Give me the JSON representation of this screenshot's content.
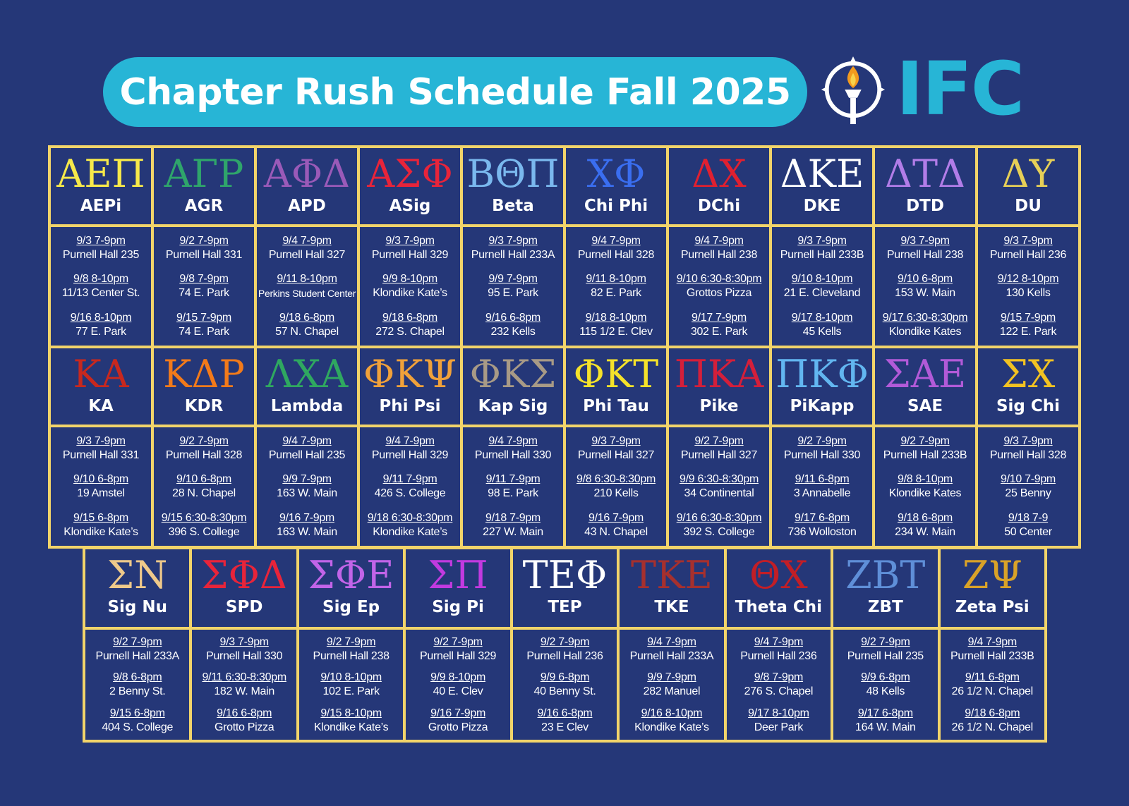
{
  "title": "Chapter Rush Schedule Fall 2025",
  "logo_text": "IFC",
  "colors": {
    "background": "#253778",
    "accent": "#27b5d6",
    "border": "#f2d46a"
  },
  "icons": {
    "logo": "torch-icon"
  },
  "top_chapters": [
    {
      "greek": "ΑΕΠ",
      "name": "AEPi",
      "color": "#f7e94a",
      "events": [
        {
          "date": "9/3 7-9pm",
          "location": "Purnell Hall 235"
        },
        {
          "date": "9/8 8-10pm",
          "location": "11/13 Center St."
        },
        {
          "date": "9/16 8-10pm",
          "location": "77 E. Park"
        }
      ]
    },
    {
      "greek": "ΑΓΡ",
      "name": "AGR",
      "color": "#2fa56b",
      "events": [
        {
          "date": "9/2 7-9pm",
          "location": "Purnell Hall 331"
        },
        {
          "date": "9/8 7-9pm",
          "location": "74 E. Park"
        },
        {
          "date": "9/15 7-9pm",
          "location": "74 E. Park"
        }
      ]
    },
    {
      "greek": "ΑΦΔ",
      "name": "APD",
      "color": "#9a5ab8",
      "events": [
        {
          "date": "9/4 7-9pm",
          "location": "Purnell Hall 327"
        },
        {
          "date": "9/11 8-10pm",
          "location": "Perkins Student Center"
        },
        {
          "date": "9/18 6-8pm",
          "location": "57 N. Chapel"
        }
      ]
    },
    {
      "greek": "ΑΣΦ",
      "name": "ASig",
      "color": "#e8243a",
      "events": [
        {
          "date": "9/3 7-9pm",
          "location": "Purnell Hall 329"
        },
        {
          "date": "9/9 8-10pm",
          "location": "Klondike Kate’s"
        },
        {
          "date": "9/18 6-8pm",
          "location": "272 S. Chapel"
        }
      ]
    },
    {
      "greek": "ΒΘΠ",
      "name": "Beta",
      "color": "#7ab8ee",
      "events": [
        {
          "date": "9/3 7-9pm",
          "location": "Purnell Hall 233A"
        },
        {
          "date": "9/9 7-9pm",
          "location": "95 E. Park"
        },
        {
          "date": "9/16 6-8pm",
          "location": "232 Kells"
        }
      ]
    },
    {
      "greek": "ΧΦ",
      "name": "Chi Phi",
      "color": "#3a6ef0",
      "events": [
        {
          "date": "9/4 7-9pm",
          "location": "Purnell Hall 328"
        },
        {
          "date": "9/11 8-10pm",
          "location": "82 E. Park"
        },
        {
          "date": "9/18 8-10pm",
          "location": "115 1/2 E. Clev"
        }
      ]
    },
    {
      "greek": "ΔΧ",
      "name": "DChi",
      "color": "#e02030",
      "events": [
        {
          "date": "9/4 7-9pm",
          "location": "Purnell Hall 238"
        },
        {
          "date": "9/10 6:30-8:30pm",
          "location": "Grottos Pizza"
        },
        {
          "date": "9/17 7-9pm",
          "location": "302 E. Park"
        }
      ]
    },
    {
      "greek": "ΔΚΕ",
      "name": "DKE",
      "color": "#ffffff",
      "events": [
        {
          "date": "9/3 7-9pm",
          "location": "Purnell Hall 233B"
        },
        {
          "date": "9/10 8-10pm",
          "location": "21 E. Cleveland"
        },
        {
          "date": "9/17 8-10pm",
          "location": "45 Kells"
        }
      ]
    },
    {
      "greek": "ΔΤΔ",
      "name": "DTD",
      "color": "#b27de8",
      "events": [
        {
          "date": "9/3 7-9pm",
          "location": "Purnell Hall 238"
        },
        {
          "date": "9/10 6-8pm",
          "location": "153 W. Main"
        },
        {
          "date": "9/17 6:30-8:30pm",
          "location": "Klondike Kates"
        }
      ]
    },
    {
      "greek": "ΔΥ",
      "name": "DU",
      "color": "#e6cf57",
      "events": [
        {
          "date": "9/3 7-9pm",
          "location": "Purnell Hall 236"
        },
        {
          "date": "9/12 8-10pm",
          "location": "130 Kells"
        },
        {
          "date": "9/15 7-9pm",
          "location": "122 E. Park"
        }
      ]
    },
    {
      "greek": "ΚΑ",
      "name": "KA",
      "color": "#c8281e",
      "events": [
        {
          "date": "9/3 7-9pm",
          "location": "Purnell Hall 331"
        },
        {
          "date": "9/10 6-8pm",
          "location": "19 Amstel"
        },
        {
          "date": "9/15 6-8pm",
          "location": "Klondike Kate’s"
        }
      ]
    },
    {
      "greek": "ΚΔΡ",
      "name": "KDR",
      "color": "#f27a1a",
      "events": [
        {
          "date": "9/2 7-9pm",
          "location": "Purnell Hall 328"
        },
        {
          "date": "9/10 6-8pm",
          "location": "28 N. Chapel"
        },
        {
          "date": "9/15 6:30-8:30pm",
          "location": "396 S. College"
        }
      ]
    },
    {
      "greek": "ΛΧΑ",
      "name": "Lambda",
      "color": "#2fa860",
      "events": [
        {
          "date": "9/4 7-9pm",
          "location": "Purnell Hall 235"
        },
        {
          "date": "9/9 7-9pm",
          "location": "163 W. Main"
        },
        {
          "date": "9/16 7-9pm",
          "location": "163 W. Main"
        }
      ]
    },
    {
      "greek": "ΦΚΨ",
      "name": "Phi Psi",
      "color": "#f0a13a",
      "events": [
        {
          "date": "9/4 7-9pm",
          "location": "Purnell Hall 329"
        },
        {
          "date": "9/11 7-9pm",
          "location": "426 S. College"
        },
        {
          "date": "9/18 6:30-8:30pm",
          "location": "Klondike Kate’s"
        }
      ]
    },
    {
      "greek": "ΦΚΣ",
      "name": "Kap Sig",
      "color": "#a89a86",
      "events": [
        {
          "date": "9/4 7-9pm",
          "location": "Purnell Hall 330"
        },
        {
          "date": "9/11 7-9pm",
          "location": "98 E. Park"
        },
        {
          "date": "9/18 7-9pm",
          "location": "227 W. Main"
        }
      ]
    },
    {
      "greek": "ΦΚΤ",
      "name": "Phi Tau",
      "color": "#f5e22a",
      "events": [
        {
          "date": "9/3 7-9pm",
          "location": "Purnell Hall 327"
        },
        {
          "date": "9/8 6:30-8:30pm",
          "location": "210 Kells"
        },
        {
          "date": "9/16 7-9pm",
          "location": "43 N. Chapel"
        }
      ]
    },
    {
      "greek": "ΠΚΑ",
      "name": "Pike",
      "color": "#d41f3a",
      "events": [
        {
          "date": "9/2 7-9pm",
          "location": "Purnell Hall 327"
        },
        {
          "date": "9/9 6:30-8:30pm",
          "location": "34 Continental"
        },
        {
          "date": "9/16 6:30-8:30pm",
          "location": "392 S. College"
        }
      ]
    },
    {
      "greek": "ΠΚΦ",
      "name": "PiKapp",
      "color": "#62b6f0",
      "events": [
        {
          "date": "9/2 7-9pm",
          "location": "Purnell Hall 330"
        },
        {
          "date": "9/11 6-8pm",
          "location": "3 Annabelle"
        },
        {
          "date": "9/17 6-8pm",
          "location": "736 Wolloston"
        }
      ]
    },
    {
      "greek": "ΣΑΕ",
      "name": "SAE",
      "color": "#b25ad8",
      "events": [
        {
          "date": "9/2 7-9pm",
          "location": "Purnell Hall 233B"
        },
        {
          "date": "9/8 8-10pm",
          "location": "Klondike Kates"
        },
        {
          "date": "9/18 6-8pm",
          "location": "234 W. Main"
        }
      ]
    },
    {
      "greek": "ΣΧ",
      "name": "Sig Chi",
      "color": "#f2c222",
      "events": [
        {
          "date": "9/3 7-9pm",
          "location": "Purnell Hall 328"
        },
        {
          "date": "9/10 7-9pm",
          "location": "25 Benny"
        },
        {
          "date": "9/18 7-9",
          "location": "50 Center"
        }
      ]
    }
  ],
  "bottom_chapters": [
    {
      "greek": "ΣΝ",
      "name": "Sig Nu",
      "color": "#efc98a",
      "events": [
        {
          "date": "9/2 7-9pm",
          "location": "Purnell Hall 233A"
        },
        {
          "date": "9/8 6-8pm",
          "location": "2 Benny St."
        },
        {
          "date": "9/15 6-8pm",
          "location": "404 S. College"
        }
      ]
    },
    {
      "greek": "ΣΦΔ",
      "name": "SPD",
      "color": "#e8243a",
      "events": [
        {
          "date": "9/3 7-9pm",
          "location": "Purnell Hall 330"
        },
        {
          "date": "9/11 6:30-8:30pm",
          "location": "182 W. Main"
        },
        {
          "date": "9/16 6-8pm",
          "location": "Grotto Pizza"
        }
      ]
    },
    {
      "greek": "ΣΦΕ",
      "name": "Sig Ep",
      "color": "#c264e8",
      "events": [
        {
          "date": "9/2 7-9pm",
          "location": "Purnell Hall 238"
        },
        {
          "date": "9/10 8-10pm",
          "location": "102 E. Park"
        },
        {
          "date": "9/15 8-10pm",
          "location": "Klondike Kate’s"
        }
      ]
    },
    {
      "greek": "ΣΠ",
      "name": "Sig Pi",
      "color": "#c23ae0",
      "events": [
        {
          "date": "9/2 7-9pm",
          "location": "Purnell Hall 329"
        },
        {
          "date": "9/9 8-10pm",
          "location": "40 E. Clev"
        },
        {
          "date": "9/16 7-9pm",
          "location": "Grotto Pizza"
        }
      ]
    },
    {
      "greek": "ΤΕΦ",
      "name": "TEP",
      "color": "#ffffff",
      "events": [
        {
          "date": "9/2 7-9pm",
          "location": "Purnell Hall 236"
        },
        {
          "date": "9/9 6-8pm",
          "location": "40 Benny St."
        },
        {
          "date": "9/16 6-8pm",
          "location": "23 E Clev"
        }
      ]
    },
    {
      "greek": "ΤΚΕ",
      "name": "TKE",
      "color": "#a6302e",
      "events": [
        {
          "date": "9/4 7-9pm",
          "location": "Purnell Hall 233A"
        },
        {
          "date": "9/9 7-9pm",
          "location": "282 Manuel"
        },
        {
          "date": "9/16 8-10pm",
          "location": "Klondike Kate’s"
        }
      ]
    },
    {
      "greek": "ΘΧ",
      "name": "Theta Chi",
      "color": "#c21e26",
      "events": [
        {
          "date": "9/4 7-9pm",
          "location": "Purnell Hall 236"
        },
        {
          "date": "9/8 7-9pm",
          "location": "276 S. Chapel"
        },
        {
          "date": "9/17 8-10pm",
          "location": "Deer Park"
        }
      ]
    },
    {
      "greek": "ΖΒΤ",
      "name": "ZBT",
      "color": "#5f8fd8",
      "events": [
        {
          "date": "9/2 7-9pm",
          "location": "Purnell Hall 235"
        },
        {
          "date": "9/9 6-8pm",
          "location": "48 Kells"
        },
        {
          "date": "9/17 6-8pm",
          "location": "164 W. Main"
        }
      ]
    },
    {
      "greek": "ΖΨ",
      "name": "Zeta Psi",
      "color": "#d9a228",
      "events": [
        {
          "date": "9/4 7-9pm",
          "location": "Purnell Hall 233B"
        },
        {
          "date": "9/11 6-8pm",
          "location": "26 1/2 N. Chapel"
        },
        {
          "date": "9/18 6-8pm",
          "location": "26 1/2 N. Chapel"
        }
      ]
    }
  ]
}
